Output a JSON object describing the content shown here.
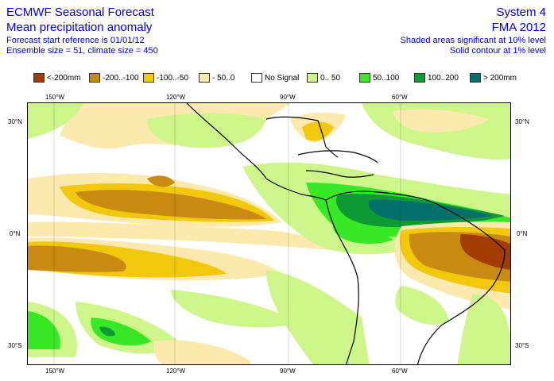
{
  "header": {
    "title1": "ECMWF Seasonal Forecast",
    "title2": "Mean precipitation anomaly",
    "info1": "Forecast start reference is 01/01/12",
    "info2": "Ensemble size = 51, climate size = 450",
    "system": "System 4",
    "period": "FMA 2012",
    "sig10": "Shaded areas significant at 10% level",
    "sig1": "Solid contour at 1% level"
  },
  "legend": [
    {
      "label": "<-200mm",
      "color": "#a33c00"
    },
    {
      "label": "-200..-100",
      "color": "#c98a12"
    },
    {
      "label": "-100..-50",
      "color": "#f2c80c"
    },
    {
      "label": "- 50..0",
      "color": "#fbe9ae"
    },
    {
      "label": "No Signal",
      "color": "#ffffff"
    },
    {
      "label": "0.. 50",
      "color": "#cdf58a"
    },
    {
      "label": "50..100",
      "color": "#38e826"
    },
    {
      "label": "100..200",
      "color": "#0d9a35"
    },
    {
      "label": "> 200mm",
      "color": "#03706a"
    }
  ],
  "axes": {
    "lon_top": [
      "150°W",
      "120°W",
      "90°W",
      "60°W"
    ],
    "lon_bottom": [
      "150°W",
      "120°W",
      "90°W",
      "60°W"
    ],
    "lat_left": [
      "30°N",
      "0°N",
      "30°S"
    ],
    "lat_right": [
      "30°N",
      "0°N",
      "30°S"
    ]
  }
}
